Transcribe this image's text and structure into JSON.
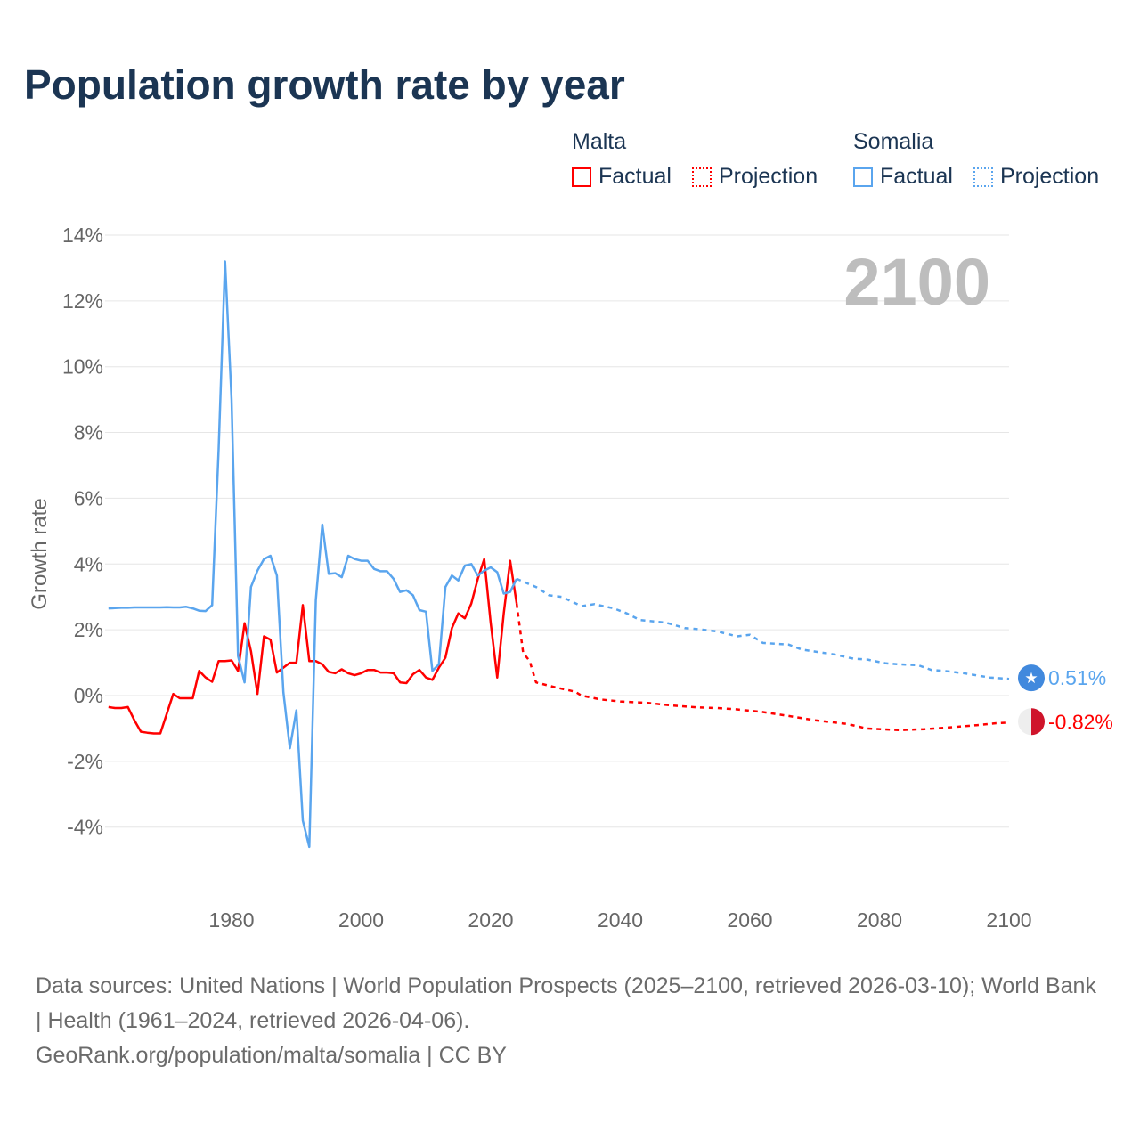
{
  "title": "Population growth rate by year",
  "legend": {
    "groups": [
      {
        "name": "Malta",
        "color": "#ff0000",
        "factual": "Factual",
        "projection": "Projection"
      },
      {
        "name": "Somalia",
        "color": "#5aa5ee",
        "factual": "Factual",
        "projection": "Projection"
      }
    ]
  },
  "footer": {
    "sources": "Data sources: United Nations | World Population Prospects (2025–2100, retrieved 2026-03-10); World Bank | Health (1961–2024, retrieved 2026-04-06).",
    "link": "GeoRank.org/population/malta/somalia | CC BY"
  },
  "chart_data": {
    "type": "line",
    "title": "Population growth rate by year",
    "ylabel": "Growth rate",
    "xlabel": "",
    "xlim": [
      1961,
      2100
    ],
    "ylim": [
      -5,
      14
    ],
    "yticks": [
      -4,
      -2,
      0,
      2,
      4,
      6,
      8,
      10,
      12,
      14
    ],
    "ytick_labels": [
      "-4%",
      "-2%",
      "0%",
      "2%",
      "4%",
      "6%",
      "8%",
      "10%",
      "12%",
      "14%"
    ],
    "xticks": [
      1980,
      2000,
      2020,
      2040,
      2060,
      2080,
      2100
    ],
    "xtick_labels": [
      "1980",
      "2000",
      "2020",
      "2040",
      "2060",
      "2080",
      "2100"
    ],
    "year_label": "2100",
    "grid": true,
    "series": [
      {
        "name": "Malta",
        "kind": "Factual",
        "color": "#ff0000",
        "x_start": 1961,
        "values": [
          -0.35,
          -0.38,
          -0.38,
          -0.35,
          -0.75,
          -1.1,
          -1.13,
          -1.15,
          -1.15,
          -0.55,
          0.05,
          -0.08,
          -0.08,
          -0.08,
          0.75,
          0.55,
          0.42,
          1.05,
          1.05,
          1.07,
          0.75,
          2.2,
          1.35,
          0.05,
          1.8,
          1.7,
          0.7,
          0.85,
          1.0,
          1.0,
          2.75,
          1.05,
          1.05,
          0.95,
          0.72,
          0.68,
          0.8,
          0.68,
          0.62,
          0.68,
          0.78,
          0.78,
          0.7,
          0.7,
          0.68,
          0.4,
          0.38,
          0.65,
          0.78,
          0.55,
          0.48,
          0.85,
          1.15,
          2.05,
          2.5,
          2.35,
          2.8,
          3.55,
          4.15,
          2.2,
          0.55,
          2.5,
          4.1,
          2.8
        ]
      },
      {
        "name": "Malta",
        "kind": "Projection",
        "color": "#ff0000",
        "x": [
          2024,
          2025,
          2026,
          2027,
          2030,
          2033,
          2034,
          2037,
          2040,
          2044,
          2048,
          2052,
          2055,
          2058,
          2062,
          2066,
          2070,
          2075,
          2078,
          2083,
          2087,
          2090,
          2095,
          2098,
          2100
        ],
        "values": [
          2.8,
          1.3,
          1.05,
          0.4,
          0.25,
          0.12,
          0.0,
          -0.12,
          -0.18,
          -0.22,
          -0.3,
          -0.36,
          -0.38,
          -0.42,
          -0.5,
          -0.62,
          -0.75,
          -0.86,
          -1.0,
          -1.05,
          -1.02,
          -0.98,
          -0.9,
          -0.84,
          -0.82
        ]
      },
      {
        "name": "Somalia",
        "kind": "Factual",
        "color": "#5aa5ee",
        "x_start": 1961,
        "values": [
          2.65,
          2.66,
          2.67,
          2.67,
          2.68,
          2.68,
          2.68,
          2.68,
          2.68,
          2.69,
          2.68,
          2.68,
          2.7,
          2.65,
          2.58,
          2.57,
          2.75,
          7.5,
          13.2,
          9.0,
          1.2,
          0.4,
          3.3,
          3.8,
          4.15,
          4.25,
          3.65,
          0.1,
          -1.6,
          -0.45,
          -3.8,
          -4.6,
          2.9,
          5.2,
          3.7,
          3.72,
          3.6,
          4.25,
          4.15,
          4.1,
          4.1,
          3.85,
          3.78,
          3.78,
          3.55,
          3.15,
          3.2,
          3.05,
          2.6,
          2.55,
          0.75,
          0.95,
          3.3,
          3.65,
          3.5,
          3.95,
          4.0,
          3.65,
          3.8,
          3.9,
          3.75,
          3.1,
          3.15,
          3.55
        ]
      },
      {
        "name": "Somalia",
        "kind": "Projection",
        "color": "#5aa5ee",
        "x": [
          2024,
          2027,
          2029,
          2031,
          2034,
          2036,
          2039,
          2041,
          2043,
          2047,
          2050,
          2052,
          2055,
          2058,
          2060,
          2062,
          2066,
          2068,
          2073,
          2076,
          2078,
          2081,
          2083,
          2086,
          2088,
          2090,
          2093,
          2097,
          2100
        ],
        "values": [
          3.55,
          3.3,
          3.05,
          3.0,
          2.72,
          2.78,
          2.65,
          2.5,
          2.3,
          2.22,
          2.05,
          2.02,
          1.95,
          1.8,
          1.85,
          1.6,
          1.55,
          1.4,
          1.25,
          1.12,
          1.1,
          0.98,
          0.95,
          0.92,
          0.78,
          0.75,
          0.68,
          0.55,
          0.51
        ]
      }
    ],
    "end_labels": [
      {
        "country": "Somalia",
        "value": 0.51,
        "text": "0.51%",
        "color": "#5aa5ee"
      },
      {
        "country": "Malta",
        "value": -0.82,
        "text": "-0.82%",
        "color": "#ff0000"
      }
    ]
  }
}
